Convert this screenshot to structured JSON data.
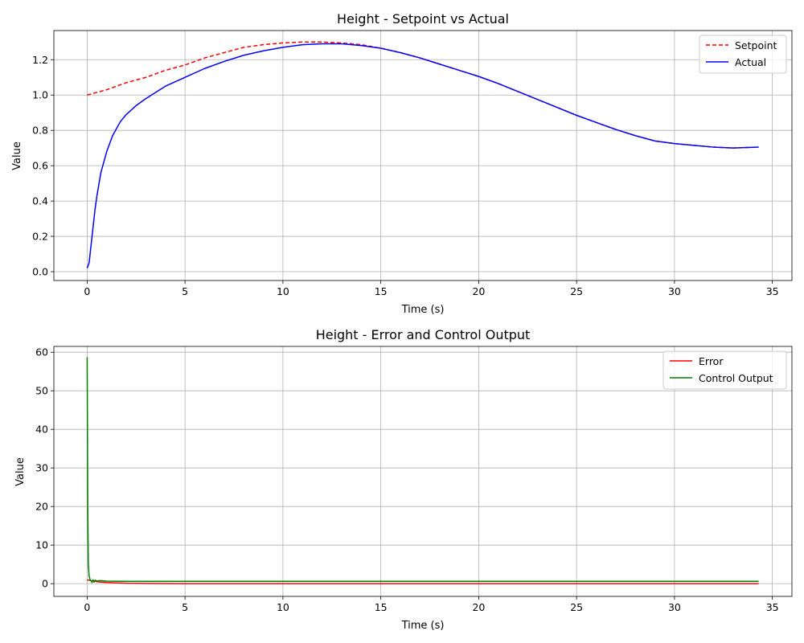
{
  "chart_data": [
    {
      "type": "line",
      "title": "Height - Setpoint vs Actual",
      "xlabel": "Time (s)",
      "ylabel": "Value",
      "xlim": [
        -1.7,
        36.0
      ],
      "ylim": [
        -0.05,
        1.365
      ],
      "xticks": [
        0,
        5,
        10,
        15,
        20,
        25,
        30,
        35
      ],
      "xtick_labels": [
        "0",
        "5",
        "10",
        "15",
        "20",
        "25",
        "30",
        "35"
      ],
      "yticks": [
        0.0,
        0.2,
        0.4,
        0.6,
        0.8,
        1.0,
        1.2
      ],
      "ytick_labels": [
        "0.0",
        "0.2",
        "0.4",
        "0.6",
        "0.8",
        "1.0",
        "1.2"
      ],
      "grid": true,
      "legend": "upper right",
      "series": [
        {
          "name": "Setpoint",
          "color": "#ff0000",
          "style": "dashed",
          "x": [
            0,
            1,
            2,
            3,
            4,
            5,
            6,
            7,
            8,
            9,
            10,
            11,
            12,
            13,
            14,
            15,
            16,
            17,
            18,
            19,
            20,
            21,
            22,
            23,
            24,
            25,
            26,
            27,
            28,
            29,
            30,
            31,
            32,
            33,
            34.3
          ],
          "y": [
            1.0,
            1.03,
            1.07,
            1.1,
            1.14,
            1.17,
            1.21,
            1.24,
            1.27,
            1.285,
            1.295,
            1.3,
            1.3,
            1.295,
            1.285,
            1.265,
            1.24,
            1.21,
            1.175,
            1.14,
            1.105,
            1.065,
            1.02,
            0.975,
            0.93,
            0.885,
            0.845,
            0.805,
            0.77,
            0.74,
            0.725,
            0.715,
            0.705,
            0.7,
            0.705
          ]
        },
        {
          "name": "Actual",
          "color": "#0000ff",
          "style": "solid",
          "x": [
            0,
            0.1,
            0.2,
            0.3,
            0.4,
            0.5,
            0.7,
            1.0,
            1.3,
            1.7,
            2.0,
            2.5,
            3.0,
            4.0,
            5.0,
            6.0,
            7.0,
            8.0,
            9.0,
            10.0,
            11.0,
            12.0,
            13.0,
            14.0,
            15.0,
            16.0,
            17.0,
            18.0,
            19.0,
            20.0,
            21.0,
            22.0,
            23.0,
            24.0,
            25.0,
            26.0,
            27.0,
            28.0,
            29.0,
            30.0,
            31.0,
            32.0,
            33.0,
            34.3
          ],
          "y": [
            0.02,
            0.05,
            0.15,
            0.25,
            0.35,
            0.43,
            0.56,
            0.68,
            0.77,
            0.85,
            0.89,
            0.94,
            0.98,
            1.05,
            1.1,
            1.15,
            1.19,
            1.225,
            1.25,
            1.27,
            1.285,
            1.29,
            1.29,
            1.28,
            1.265,
            1.24,
            1.21,
            1.175,
            1.14,
            1.105,
            1.065,
            1.02,
            0.975,
            0.93,
            0.885,
            0.845,
            0.805,
            0.77,
            0.74,
            0.725,
            0.715,
            0.705,
            0.7,
            0.705
          ]
        }
      ]
    },
    {
      "type": "line",
      "title": "Height - Error and Control Output",
      "xlabel": "Time (s)",
      "ylabel": "Value",
      "xlim": [
        -1.7,
        36.0
      ],
      "ylim": [
        -3.3,
        61.5
      ],
      "xticks": [
        0,
        5,
        10,
        15,
        20,
        25,
        30,
        35
      ],
      "xtick_labels": [
        "0",
        "5",
        "10",
        "15",
        "20",
        "25",
        "30",
        "35"
      ],
      "yticks": [
        0,
        10,
        20,
        30,
        40,
        50,
        60
      ],
      "ytick_labels": [
        "0",
        "10",
        "20",
        "30",
        "40",
        "50",
        "60"
      ],
      "grid": true,
      "legend": "upper right",
      "series": [
        {
          "name": "Error",
          "color": "#ff0000",
          "style": "solid",
          "x": [
            0,
            0.2,
            0.5,
            1.0,
            2.0,
            3.0,
            5.0,
            10.0,
            15.0,
            20.0,
            25.0,
            30.0,
            34.3
          ],
          "y": [
            0.98,
            0.8,
            0.5,
            0.3,
            0.1,
            0.05,
            0.02,
            0.01,
            0.01,
            0.0,
            0.0,
            0.0,
            0.0
          ]
        },
        {
          "name": "Control Output",
          "color": "#008000",
          "style": "solid",
          "x": [
            0,
            0.03,
            0.06,
            0.1,
            0.15,
            0.2,
            0.25,
            0.3,
            0.35,
            0.4,
            0.5,
            0.7,
            1.0,
            2.0,
            5.0,
            10.0,
            20.0,
            30.0,
            34.3
          ],
          "y": [
            58.7,
            20.0,
            5.0,
            2.0,
            1.0,
            0.8,
            0.3,
            1.0,
            0.4,
            0.9,
            0.7,
            0.8,
            0.65,
            0.6,
            0.6,
            0.6,
            0.6,
            0.6,
            0.6
          ]
        }
      ]
    }
  ]
}
